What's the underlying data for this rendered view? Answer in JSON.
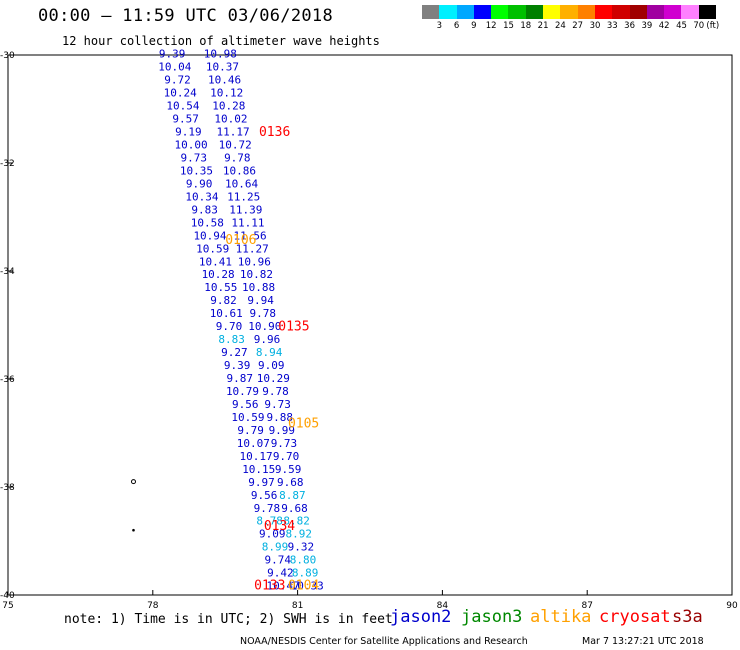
{
  "header": {
    "title": "00:00 – 11:59 UTC 03/06/2018",
    "subtitle": "12 hour collection of altimeter wave heights"
  },
  "scale": {
    "labels": [
      "3",
      "6",
      "9",
      "12",
      "15",
      "18",
      "21",
      "24",
      "27",
      "30",
      "33",
      "36",
      "39",
      "42",
      "45",
      "70"
    ],
    "unit": "(ft)",
    "colors": [
      "#808080",
      "#00f0ff",
      "#00a8ff",
      "#0000ff",
      "#00ff00",
      "#00c000",
      "#008000",
      "#ffff00",
      "#ffb000",
      "#ff8000",
      "#ff0000",
      "#d00000",
      "#a00000",
      "#a000a0",
      "#d000d0",
      "#ff80ff",
      "#000000"
    ]
  },
  "legend": {
    "note": "note: 1) Time is in UTC; 2) SWH is in feet",
    "satellites": [
      {
        "name": "jason2",
        "color": "#0000cc"
      },
      {
        "name": "jason3",
        "color": "#008800"
      },
      {
        "name": "altika",
        "color": "#ffa000"
      },
      {
        "name": "cryosat",
        "color": "#ff0000"
      },
      {
        "name": "s3a",
        "color": "#990000"
      }
    ]
  },
  "footer": {
    "credit": "NOAA/NESDIS Center for Satellite Applications and Research",
    "timestamp": "Mar  7 13:27:21 UTC 2018"
  },
  "chart_data": {
    "type": "scatter",
    "xlim": [
      75,
      90
    ],
    "ylim": [
      -40,
      -30
    ],
    "x_ticks": [
      "75",
      "78",
      "81",
      "84",
      "87",
      "90"
    ],
    "y_ticks": [
      "-30",
      "-32",
      "-34",
      "-36",
      "-38",
      "-40"
    ],
    "track_left": {
      "color": "#0000cc",
      "x_start": 78.4,
      "x_end": 80.7,
      "values": [
        "9.39",
        "10.04",
        "9.72",
        "10.24",
        "10.54",
        "9.57",
        "9.19",
        "10.00",
        "9.73",
        "10.35",
        "9.90",
        "10.34",
        "9.83",
        "10.58",
        "10.94",
        "10.59",
        "10.41",
        "10.28",
        "10.55",
        "9.82",
        "10.61",
        "9.70",
        "8.83",
        "9.27",
        "9.39",
        "9.87",
        "10.79",
        "9.56",
        "10.59",
        "9.79",
        "10.07",
        "10.17",
        "10.15",
        "9.97",
        "9.56",
        "9.78",
        "8.78",
        "9.09",
        "8.99",
        "9.74",
        "9.42",
        "10.47"
      ],
      "colors": [
        "#0000cc",
        "#0000cc",
        "#0000cc",
        "#0000cc",
        "#0000cc",
        "#0000cc",
        "#0000cc",
        "#0000cc",
        "#0000cc",
        "#0000cc",
        "#0000cc",
        "#0000cc",
        "#0000cc",
        "#0000cc",
        "#0000cc",
        "#0000cc",
        "#0000cc",
        "#0000cc",
        "#0000cc",
        "#0000cc",
        "#0000cc",
        "#0000cc",
        "#00b0e0",
        "#0000cc",
        "#0000cc",
        "#0000cc",
        "#0000cc",
        "#0000cc",
        "#0000cc",
        "#0000cc",
        "#0000cc",
        "#0000cc",
        "#0000cc",
        "#0000cc",
        "#0000cc",
        "#0000cc",
        "#00b0e0",
        "#0000cc",
        "#00b0e0",
        "#0000cc",
        "#0000cc",
        "#0000cc"
      ]
    },
    "track_right": {
      "color": "#0000cc",
      "x_start": 79.4,
      "x_end": 81.2,
      "values": [
        "10.98",
        "10.37",
        "10.46",
        "10.12",
        "10.28",
        "10.02",
        "11.17",
        "10.72",
        "9.78",
        "10.86",
        "10.64",
        "11.25",
        "11.39",
        "11.11",
        "11.56",
        "11.27",
        "10.96",
        "10.82",
        "10.88",
        "9.94",
        "9.78",
        "10.90",
        "9.96",
        "8.94",
        "9.09",
        "10.29",
        "9.78",
        "9.73",
        "9.88",
        "9.99",
        "9.73",
        "9.70",
        "9.59",
        "9.68",
        "8.87",
        "9.68",
        "8.82",
        "8.92",
        "9.32",
        "8.80",
        "8.89",
        "10.33"
      ],
      "colors": [
        "#0000cc",
        "#0000cc",
        "#0000cc",
        "#0000cc",
        "#0000cc",
        "#0000cc",
        "#0000cc",
        "#0000cc",
        "#0000cc",
        "#0000cc",
        "#0000cc",
        "#0000cc",
        "#0000cc",
        "#0000cc",
        "#0000cc",
        "#0000cc",
        "#0000cc",
        "#0000cc",
        "#0000cc",
        "#0000cc",
        "#0000cc",
        "#0000cc",
        "#0000cc",
        "#00b0e0",
        "#0000cc",
        "#0000cc",
        "#0000cc",
        "#0000cc",
        "#0000cc",
        "#0000cc",
        "#0000cc",
        "#0000cc",
        "#0000cc",
        "#0000cc",
        "#00b0e0",
        "#0000cc",
        "#00b0e0",
        "#00b0e0",
        "#0000cc",
        "#00b0e0",
        "#00b0e0",
        "#0000cc"
      ]
    },
    "time_labels": [
      {
        "text": "0136",
        "x": 80.2,
        "y": -31.5,
        "color": "#ff0000"
      },
      {
        "text": "0106",
        "x": 79.5,
        "y": -33.5,
        "color": "#ffa000"
      },
      {
        "text": "0135",
        "x": 80.6,
        "y": -35.1,
        "color": "#ff0000"
      },
      {
        "text": "0105",
        "x": 80.8,
        "y": -36.9,
        "color": "#ffa000"
      },
      {
        "text": "0134",
        "x": 80.3,
        "y": -38.8,
        "color": "#ff0000"
      },
      {
        "text": "0133",
        "x": 80.1,
        "y": -39.9,
        "color": "#ff0000"
      },
      {
        "text": "0104",
        "x": 80.8,
        "y": -39.9,
        "color": "#ffa000"
      }
    ],
    "markers": [
      {
        "x": 77.6,
        "y": -37.9,
        "symbol": "o"
      },
      {
        "x": 77.6,
        "y": -38.8,
        "symbol": "dot"
      }
    ]
  }
}
